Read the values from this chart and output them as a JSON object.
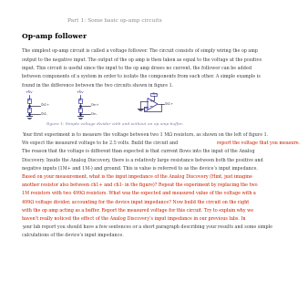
{
  "title": "Part 1: Some basic op-amp circuits",
  "section_header": "Op-amp follower",
  "body_lines": [
    "The simplest op-amp circuit is called a voltage follower. The circuit consists of simply wiring the op amp",
    "output to the negative input. The output of the op amp is then taken as equal to the voltage at the positive",
    "input. This circuit is useful since the input to the op amp draws no current, the follower can be added",
    "between components of a system in order to isolate the components from each other. A simple example is",
    "found in the difference between the two circuits shown in figure 1."
  ],
  "figure_caption": "Figure 1: Simple voltage divider with and without an op amp buffer.",
  "para_lines": [
    [
      "normal",
      "Your first experiment is to measure the voltage between two 1 MΩ resistors, as shown on the left of figure 1."
    ],
    [
      "mixed",
      "We expect the measured voltage to be 2.5 volts. Build the circuit and ",
      "report the voltage that you measure.",
      ""
    ],
    [
      "normal",
      "The reason that the voltage is different than expected is that current flows into the input of the Analog"
    ],
    [
      "normal",
      "Discovery. Inside the Analog Discovery, there is a relatively large resistance between both the positive and"
    ],
    [
      "normal",
      "negative inputs (1M+ and 1M-) and ground. This is value is referred to as the device’s input impedance."
    ],
    [
      "red",
      "Based on your measurement, what is the input impedance of the Analog Discovery (Hint, just imagine"
    ],
    [
      "red",
      "another resistor also between ch1+ and ch1- in the figure)? Repeat the experiment by replacing the two"
    ],
    [
      "red",
      "1M resistors with two 499Ω resistors. What was the expected and measured value of the voltage with a"
    ],
    [
      "red",
      "499Ω voltage divider, accounting for the device input impedance? Now build the circuit on the right"
    ],
    [
      "red",
      "with the op amp acting as a buffer. Report the measured voltage for this circuit. Try to explain why we"
    ],
    [
      "red",
      "haven’t really noticed the effect of the Analog Discovery’s input impedance in our previous labs. In"
    ],
    [
      "normal",
      "your lab report you should have a few sentences or a short paragraph describing your results and some simple"
    ],
    [
      "normal",
      "calculations of the device’s input impedance."
    ]
  ],
  "bg_color": "#ffffff",
  "title_color": "#888888",
  "header_color": "#000000",
  "body_color": "#444444",
  "red_color": "#cc2200",
  "link_color": "#3333bb",
  "circuit_color": "#3333aa",
  "wire_color": "#222244"
}
